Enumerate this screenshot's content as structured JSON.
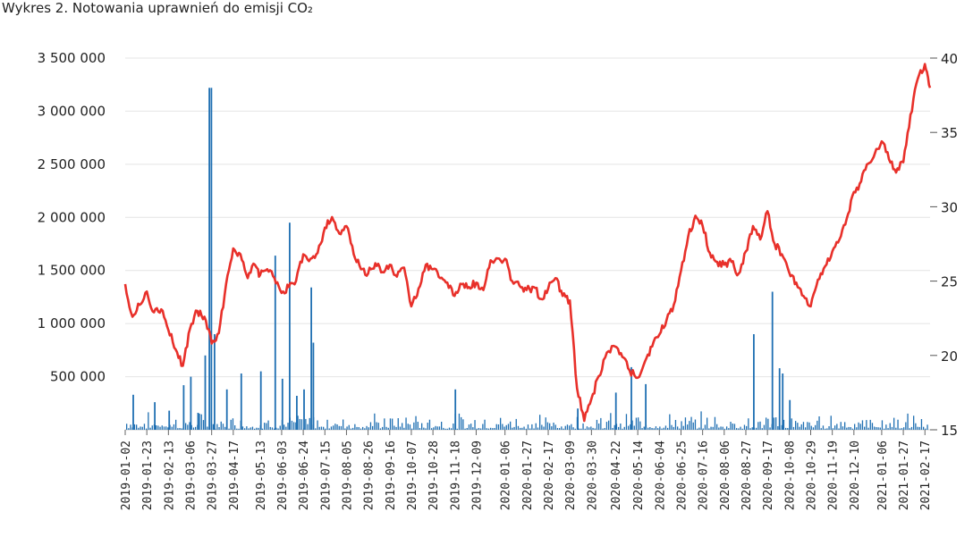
{
  "title": "Wykres 2. Notowania uprawnień do emisji CO₂",
  "chart_data": {
    "type": "bar+line",
    "title": "Wykres 2. Notowania uprawnień do emisji CO₂",
    "left_axis": {
      "ylim": [
        0,
        3500000
      ],
      "ticks": [
        500000,
        1000000,
        1500000,
        2000000,
        2500000,
        3000000,
        3500000
      ],
      "tick_labels": [
        "500 000",
        "1 000 000",
        "1 500 000",
        "2 000 000",
        "2 500 000",
        "3 000 000",
        "3 500 000"
      ]
    },
    "right_axis": {
      "ylim": [
        15,
        40
      ],
      "ticks": [
        15,
        20,
        25,
        30,
        35,
        40
      ],
      "tick_labels": [
        "15",
        "20",
        "25",
        "30",
        "35",
        "40"
      ]
    },
    "x_tick_labels": [
      "2019-01-02",
      "2019-01-23",
      "2019-02-13",
      "2019-03-06",
      "2019-03-27",
      "2019-04-17",
      "2019-05-13",
      "2019-06-03",
      "2019-06-24",
      "2019-07-15",
      "2019-08-05",
      "2019-08-26",
      "2019-09-16",
      "2019-10-07",
      "2019-10-28",
      "2019-11-18",
      "2019-12-09",
      "2020-01-06",
      "2020-01-27",
      "2020-02-17",
      "2020-03-09",
      "2020-03-30",
      "2020-04-22",
      "2020-05-14",
      "2020-06-04",
      "2020-06-25",
      "2020-07-16",
      "2020-08-06",
      "2020-08-27",
      "2020-09-17",
      "2020-10-08",
      "2020-10-29",
      "2020-11-19",
      "2020-12-10",
      "2021-01-06",
      "2021-01-27",
      "2021-02-17"
    ],
    "grid": "horizontal",
    "price_series": {
      "color": "#e8302a",
      "axis": "right",
      "points": [
        [
          "2019-01-02",
          24.8
        ],
        [
          "2019-01-09",
          22.6
        ],
        [
          "2019-01-16",
          23.4
        ],
        [
          "2019-01-23",
          24.3
        ],
        [
          "2019-01-30",
          22.9
        ],
        [
          "2019-02-06",
          23.1
        ],
        [
          "2019-02-13",
          21.7
        ],
        [
          "2019-02-20",
          20.4
        ],
        [
          "2019-02-27",
          19.3
        ],
        [
          "2019-03-06",
          21.8
        ],
        [
          "2019-03-13",
          23.0
        ],
        [
          "2019-03-20",
          22.6
        ],
        [
          "2019-03-27",
          20.8
        ],
        [
          "2019-04-03",
          21.5
        ],
        [
          "2019-04-10",
          24.8
        ],
        [
          "2019-04-17",
          27.2
        ],
        [
          "2019-04-24",
          26.8
        ],
        [
          "2019-05-01",
          25.2
        ],
        [
          "2019-05-08",
          26.1
        ],
        [
          "2019-05-13",
          25.4
        ],
        [
          "2019-05-20",
          25.8
        ],
        [
          "2019-05-27",
          25.2
        ],
        [
          "2019-06-03",
          24.2
        ],
        [
          "2019-06-10",
          24.6
        ],
        [
          "2019-06-17",
          25.0
        ],
        [
          "2019-06-24",
          26.8
        ],
        [
          "2019-07-01",
          26.5
        ],
        [
          "2019-07-08",
          26.9
        ],
        [
          "2019-07-15",
          28.6
        ],
        [
          "2019-07-22",
          29.3
        ],
        [
          "2019-07-29",
          28.2
        ],
        [
          "2019-08-05",
          28.7
        ],
        [
          "2019-08-12",
          26.8
        ],
        [
          "2019-08-19",
          25.8
        ],
        [
          "2019-08-26",
          25.5
        ],
        [
          "2019-09-02",
          26.2
        ],
        [
          "2019-09-09",
          25.6
        ],
        [
          "2019-09-16",
          26.1
        ],
        [
          "2019-09-23",
          25.3
        ],
        [
          "2019-09-30",
          25.9
        ],
        [
          "2019-10-07",
          23.3
        ],
        [
          "2019-10-14",
          24.5
        ],
        [
          "2019-10-21",
          26.1
        ],
        [
          "2019-10-28",
          25.8
        ],
        [
          "2019-11-04",
          25.2
        ],
        [
          "2019-11-11",
          24.9
        ],
        [
          "2019-11-18",
          24.0
        ],
        [
          "2019-11-25",
          24.8
        ],
        [
          "2019-12-02",
          24.6
        ],
        [
          "2019-12-09",
          24.9
        ],
        [
          "2019-12-16",
          24.4
        ],
        [
          "2019-12-23",
          26.4
        ],
        [
          "2020-01-06",
          26.5
        ],
        [
          "2020-01-13",
          25.0
        ],
        [
          "2020-01-20",
          24.7
        ],
        [
          "2020-01-27",
          24.4
        ],
        [
          "2020-02-03",
          24.6
        ],
        [
          "2020-02-10",
          23.8
        ],
        [
          "2020-02-17",
          24.5
        ],
        [
          "2020-02-24",
          25.2
        ],
        [
          "2020-03-02",
          24.0
        ],
        [
          "2020-03-09",
          23.7
        ],
        [
          "2020-03-16",
          17.8
        ],
        [
          "2020-03-23",
          15.6
        ],
        [
          "2020-03-30",
          17.1
        ],
        [
          "2020-04-06",
          18.6
        ],
        [
          "2020-04-14",
          20.2
        ],
        [
          "2020-04-22",
          20.6
        ],
        [
          "2020-04-29",
          19.9
        ],
        [
          "2020-05-06",
          19.0
        ],
        [
          "2020-05-14",
          18.5
        ],
        [
          "2020-05-21",
          19.6
        ],
        [
          "2020-05-28",
          20.6
        ],
        [
          "2020-06-04",
          21.4
        ],
        [
          "2020-06-11",
          22.4
        ],
        [
          "2020-06-18",
          23.4
        ],
        [
          "2020-06-25",
          25.7
        ],
        [
          "2020-07-02",
          28.0
        ],
        [
          "2020-07-09",
          29.4
        ],
        [
          "2020-07-16",
          28.7
        ],
        [
          "2020-07-23",
          26.9
        ],
        [
          "2020-07-30",
          26.3
        ],
        [
          "2020-08-06",
          26.1
        ],
        [
          "2020-08-13",
          26.3
        ],
        [
          "2020-08-20",
          25.5
        ],
        [
          "2020-08-27",
          27.0
        ],
        [
          "2020-09-03",
          28.7
        ],
        [
          "2020-09-10",
          27.8
        ],
        [
          "2020-09-17",
          29.7
        ],
        [
          "2020-09-24",
          27.5
        ],
        [
          "2020-10-01",
          26.8
        ],
        [
          "2020-10-08",
          25.6
        ],
        [
          "2020-10-15",
          24.9
        ],
        [
          "2020-10-22",
          24.0
        ],
        [
          "2020-10-29",
          23.3
        ],
        [
          "2020-11-05",
          25.1
        ],
        [
          "2020-11-12",
          26.0
        ],
        [
          "2020-11-19",
          27.0
        ],
        [
          "2020-11-26",
          27.8
        ],
        [
          "2020-12-03",
          29.2
        ],
        [
          "2020-12-10",
          31.0
        ],
        [
          "2020-12-17",
          31.7
        ],
        [
          "2020-12-24",
          32.9
        ],
        [
          "2021-01-06",
          34.4
        ],
        [
          "2021-01-13",
          33.2
        ],
        [
          "2021-01-20",
          32.3
        ],
        [
          "2021-01-27",
          33.0
        ],
        [
          "2021-02-03",
          36.2
        ],
        [
          "2021-02-10",
          38.6
        ],
        [
          "2021-02-17",
          39.6
        ],
        [
          "2021-02-22",
          38.0
        ]
      ]
    },
    "volume_series": {
      "color": "#1f6fb2",
      "axis": "left",
      "baseline_range": [
        10000,
        180000
      ],
      "spikes": [
        [
          "2019-01-09",
          330000
        ],
        [
          "2019-01-30",
          260000
        ],
        [
          "2019-02-13",
          180000
        ],
        [
          "2019-02-27",
          420000
        ],
        [
          "2019-03-06",
          500000
        ],
        [
          "2019-03-13",
          160000
        ],
        [
          "2019-03-20",
          700000
        ],
        [
          "2019-03-24",
          3220000
        ],
        [
          "2019-03-26",
          3220000
        ],
        [
          "2019-03-29",
          900000
        ],
        [
          "2019-04-10",
          380000
        ],
        [
          "2019-04-24",
          530000
        ],
        [
          "2019-05-13",
          550000
        ],
        [
          "2019-05-27",
          1640000
        ],
        [
          "2019-06-03",
          480000
        ],
        [
          "2019-06-10",
          1950000
        ],
        [
          "2019-06-17",
          320000
        ],
        [
          "2019-06-24",
          380000
        ],
        [
          "2019-07-01",
          1340000
        ],
        [
          "2019-07-03",
          820000
        ],
        [
          "2019-11-18",
          380000
        ],
        [
          "2020-03-16",
          200000
        ],
        [
          "2020-04-22",
          350000
        ],
        [
          "2020-05-07",
          590000
        ],
        [
          "2020-05-21",
          430000
        ],
        [
          "2020-09-03",
          900000
        ],
        [
          "2020-09-21",
          1300000
        ],
        [
          "2020-09-28",
          580000
        ],
        [
          "2020-10-01",
          530000
        ],
        [
          "2020-10-08",
          280000
        ]
      ]
    }
  }
}
